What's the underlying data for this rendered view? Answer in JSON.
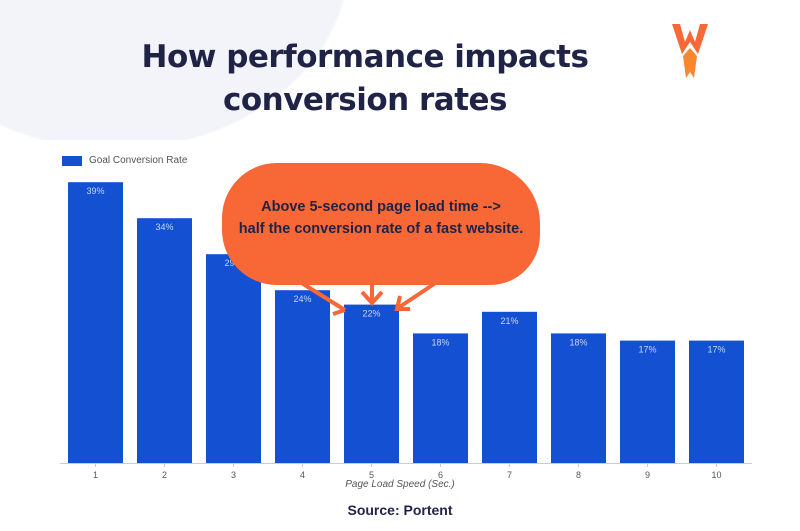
{
  "title_line1": "How performance impacts",
  "title_line2": "conversion rates",
  "source": "Source: Portent",
  "annotation": {
    "line1": "Above 5-second page load time -->",
    "line2": "half the conversion rate of a fast website."
  },
  "logo": {
    "text": "W",
    "color": "#f76836"
  },
  "chart_data": {
    "type": "bar",
    "categories": [
      "1",
      "2",
      "3",
      "4",
      "5",
      "6",
      "7",
      "8",
      "9",
      "10"
    ],
    "series": [
      {
        "name": "Goal Conversion Rate",
        "values": [
          39,
          34,
          29,
          24,
          22,
          18,
          21,
          18,
          17,
          17
        ],
        "color": "#1450d2"
      }
    ],
    "data_labels": [
      "39%",
      "34%",
      "29%",
      "24%",
      "22%",
      "18%",
      "21%",
      "18%",
      "17%",
      "17%"
    ],
    "xlabel": "Page Load Speed (Sec.)",
    "ylabel": "",
    "ylim": [
      0,
      40
    ],
    "grid": false,
    "legend": "top-left"
  }
}
